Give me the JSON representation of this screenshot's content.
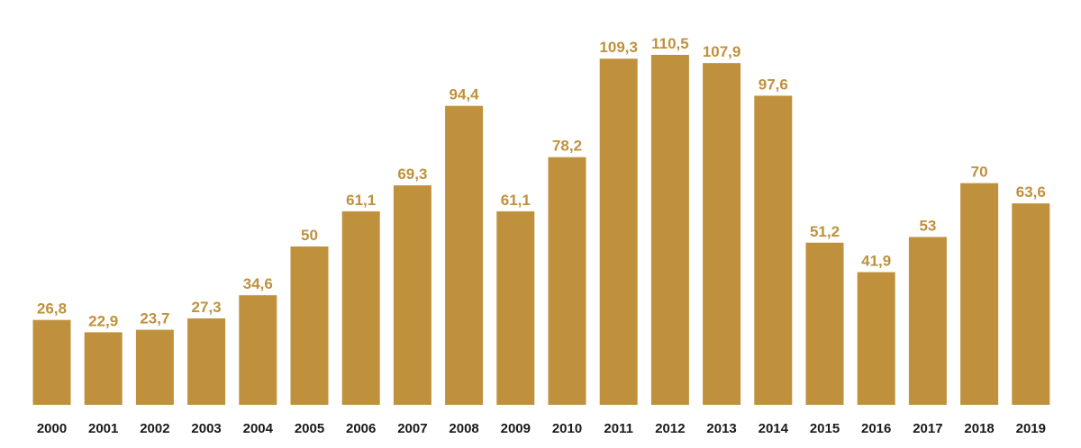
{
  "colors": {
    "bar": "#BF913D",
    "label": "#BF913D",
    "tick": "#1a1a1a"
  },
  "chart_data": {
    "type": "bar",
    "title": "",
    "xlabel": "",
    "ylabel": "",
    "categories": [
      "2000",
      "2001",
      "2002",
      "2003",
      "2004",
      "2005",
      "2006",
      "2007",
      "2008",
      "2009",
      "2010",
      "2011",
      "2012",
      "2013",
      "2014",
      "2015",
      "2016",
      "2017",
      "2018",
      "2019"
    ],
    "values": [
      26.8,
      22.9,
      23.7,
      27.3,
      34.6,
      50,
      61.1,
      69.3,
      94.4,
      61.1,
      78.2,
      109.3,
      110.5,
      107.9,
      97.6,
      51.2,
      41.9,
      53,
      70,
      63.6
    ],
    "value_labels": [
      "26,8",
      "22,9",
      "23,7",
      "27,3",
      "34,6",
      "50",
      "61,1",
      "69,3",
      "94,4",
      "61,1",
      "78,2",
      "109,3",
      "110,5",
      "107,9",
      "97,6",
      "51,2",
      "41,9",
      "53",
      "70",
      "63,6"
    ],
    "ylim": [
      0,
      110.5
    ],
    "grid": false,
    "legend": "none"
  }
}
